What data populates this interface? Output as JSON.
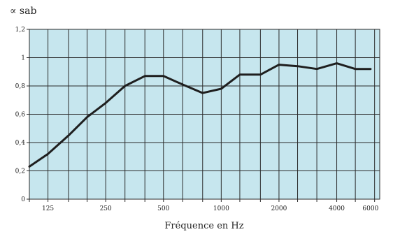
{
  "chart_data": {
    "type": "line",
    "ylabel": "∝ sab",
    "xlabel": "Fréquence en Hz",
    "ylim": [
      0,
      1.2
    ],
    "y_ticks": [
      "0",
      "0,2",
      "0,4",
      "0,6",
      "0,8",
      "1",
      "1,2"
    ],
    "x_scale": "log",
    "x_ticks": [
      "125",
      "250",
      "500",
      "1000",
      "2000",
      "4000",
      "6000"
    ],
    "grid": true,
    "colors": {
      "plot_background": "#c6e6ee",
      "grid": "#2b2b2b",
      "line": "#1f1f1f"
    },
    "series": [
      {
        "x": [
          100,
          125,
          160,
          200,
          250,
          315,
          400,
          500,
          630,
          800,
          1000,
          1250,
          1600,
          2000,
          2500,
          3150,
          4000,
          5000,
          6000
        ],
        "y": [
          0.23,
          0.32,
          0.45,
          0.58,
          0.68,
          0.8,
          0.87,
          0.87,
          0.81,
          0.75,
          0.78,
          0.88,
          0.88,
          0.95,
          0.94,
          0.92,
          0.96,
          0.92,
          0.92
        ]
      }
    ]
  }
}
